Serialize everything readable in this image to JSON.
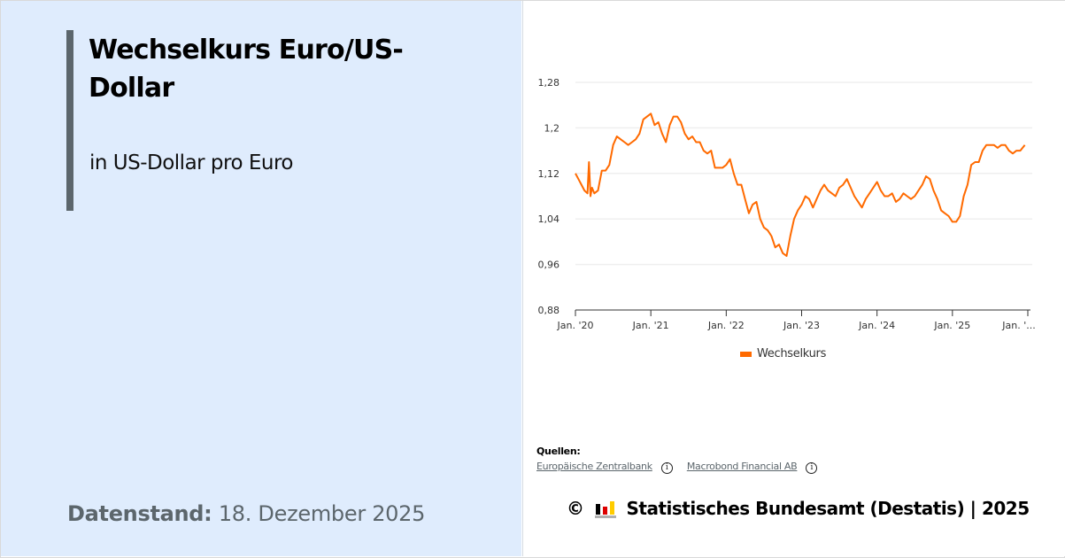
{
  "header": {
    "title": "Wechselkurs Euro/US-Dollar",
    "subtitle": "in US-Dollar pro Euro"
  },
  "datenstand": {
    "label": "Datenstand:",
    "value": "18. Dezember 2025"
  },
  "legend": {
    "label": "Wechselkurs",
    "color": "#ff6a00"
  },
  "sources": {
    "label": "Quellen:",
    "items": [
      {
        "name": "Europäische Zentralbank",
        "icon": "info-icon"
      },
      {
        "name": "Macrobond Financial AB",
        "icon": "info-icon"
      }
    ]
  },
  "footer": {
    "copyright_symbol": "©",
    "text": "Statistisches Bundesamt (Destatis) | 2025"
  },
  "colors": {
    "line": "#ff6a00",
    "left_panel_bg": "#dfecfd",
    "accent_bar": "#5c666c",
    "grid": "#efefef"
  },
  "chart_data": {
    "type": "line",
    "title": "Wechselkurs Euro/US-Dollar",
    "subtitle": "in US-Dollar pro Euro",
    "xlabel": "",
    "ylabel": "US-Dollar pro Euro",
    "ylim": [
      0.88,
      1.28
    ],
    "yticks": [
      "0,88",
      "0,96",
      "1,04",
      "1,12",
      "1,2",
      "1,28"
    ],
    "ytick_values": [
      0.88,
      0.96,
      1.04,
      1.12,
      1.2,
      1.28
    ],
    "xticks": [
      "Jan. '20",
      "Jan. '21",
      "Jan. '22",
      "Jan. '23",
      "Jan. '24",
      "Jan. '25",
      "Jan. '..."
    ],
    "xtick_years": [
      2020,
      2021,
      2022,
      2023,
      2024,
      2025,
      2026
    ],
    "grid": true,
    "legend_position": "bottom",
    "series": [
      {
        "name": "Wechselkurs",
        "color": "#ff6a00",
        "x": [
          2020.0,
          2020.04,
          2020.08,
          2020.12,
          2020.16,
          2020.18,
          2020.2,
          2020.22,
          2020.25,
          2020.3,
          2020.35,
          2020.4,
          2020.45,
          2020.5,
          2020.55,
          2020.6,
          2020.65,
          2020.7,
          2020.75,
          2020.8,
          2020.85,
          2020.9,
          2020.95,
          2021.0,
          2021.05,
          2021.1,
          2021.15,
          2021.2,
          2021.25,
          2021.3,
          2021.35,
          2021.4,
          2021.45,
          2021.5,
          2021.55,
          2021.6,
          2021.65,
          2021.7,
          2021.75,
          2021.8,
          2021.85,
          2021.9,
          2021.95,
          2022.0,
          2022.05,
          2022.1,
          2022.15,
          2022.2,
          2022.25,
          2022.3,
          2022.35,
          2022.4,
          2022.45,
          2022.5,
          2022.55,
          2022.6,
          2022.65,
          2022.7,
          2022.75,
          2022.8,
          2022.85,
          2022.9,
          2022.95,
          2023.0,
          2023.05,
          2023.1,
          2023.15,
          2023.2,
          2023.25,
          2023.3,
          2023.35,
          2023.4,
          2023.45,
          2023.5,
          2023.55,
          2023.6,
          2023.65,
          2023.7,
          2023.75,
          2023.8,
          2023.85,
          2023.9,
          2023.95,
          2024.0,
          2024.05,
          2024.1,
          2024.15,
          2024.2,
          2024.25,
          2024.3,
          2024.35,
          2024.4,
          2024.45,
          2024.5,
          2024.55,
          2024.6,
          2024.65,
          2024.7,
          2024.75,
          2024.8,
          2024.85,
          2024.9,
          2024.95,
          2025.0,
          2025.05,
          2025.1,
          2025.15,
          2025.2,
          2025.25,
          2025.3,
          2025.35,
          2025.4,
          2025.45,
          2025.5,
          2025.55,
          2025.6,
          2025.65,
          2025.7,
          2025.75,
          2025.8,
          2025.85,
          2025.9,
          2025.96
        ],
        "y": [
          1.12,
          1.11,
          1.1,
          1.09,
          1.085,
          1.14,
          1.08,
          1.095,
          1.085,
          1.09,
          1.125,
          1.125,
          1.135,
          1.17,
          1.185,
          1.18,
          1.175,
          1.17,
          1.175,
          1.18,
          1.19,
          1.215,
          1.22,
          1.225,
          1.205,
          1.21,
          1.19,
          1.175,
          1.205,
          1.22,
          1.22,
          1.21,
          1.19,
          1.18,
          1.185,
          1.175,
          1.175,
          1.16,
          1.155,
          1.16,
          1.13,
          1.13,
          1.13,
          1.135,
          1.145,
          1.12,
          1.1,
          1.1,
          1.075,
          1.05,
          1.065,
          1.07,
          1.04,
          1.025,
          1.02,
          1.01,
          0.99,
          0.995,
          0.98,
          0.975,
          1.01,
          1.04,
          1.055,
          1.065,
          1.08,
          1.075,
          1.06,
          1.075,
          1.09,
          1.1,
          1.09,
          1.085,
          1.08,
          1.095,
          1.1,
          1.11,
          1.095,
          1.08,
          1.07,
          1.06,
          1.075,
          1.085,
          1.095,
          1.105,
          1.09,
          1.08,
          1.08,
          1.085,
          1.07,
          1.075,
          1.085,
          1.08,
          1.075,
          1.08,
          1.09,
          1.1,
          1.115,
          1.11,
          1.09,
          1.075,
          1.055,
          1.05,
          1.045,
          1.035,
          1.035,
          1.045,
          1.08,
          1.1,
          1.135,
          1.14,
          1.14,
          1.16,
          1.17,
          1.17,
          1.17,
          1.165,
          1.17,
          1.17,
          1.16,
          1.155,
          1.16,
          1.16,
          1.17
        ]
      }
    ]
  }
}
